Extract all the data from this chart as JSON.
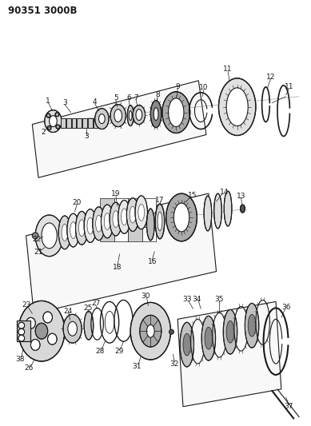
{
  "title": "90351 3000B",
  "bg_color": "#ffffff",
  "line_color": "#1a1a1a",
  "title_fontsize": 8.5,
  "title_fontweight": "bold",
  "fig_width": 3.89,
  "fig_height": 5.33,
  "dpi": 100
}
